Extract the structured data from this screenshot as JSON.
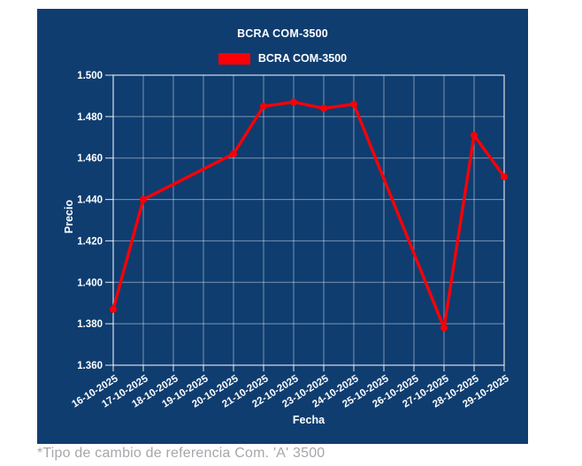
{
  "footnote": "*Tipo de cambio de referencia Com. 'A' 3500",
  "colors": {
    "panel_bg": "#0f3d70",
    "line": "#fb0007",
    "grid": "rgba(255,255,255,0.45)",
    "frame": "rgba(255,255,255,0.75)",
    "text": "#ffffff",
    "footnote_text": "#a4a7ab"
  },
  "chart_data": {
    "type": "line",
    "title": "BCRA COM-3500",
    "xlabel": "Fecha",
    "ylabel": "Precio",
    "grid": true,
    "legend_position": "top-center",
    "legend": [
      {
        "label": "BCRA COM-3500",
        "color": "#fb0007"
      }
    ],
    "categories": [
      "16-10-2025",
      "17-10-2025",
      "18-10-2025",
      "19-10-2025",
      "20-10-2025",
      "21-10-2025",
      "22-10-2025",
      "23-10-2025",
      "24-10-2025",
      "25-10-2025",
      "26-10-2025",
      "27-10-2025",
      "28-10-2025",
      "29-10-2025"
    ],
    "ylim": [
      1.36,
      1.5
    ],
    "yticks": [
      1.36,
      1.38,
      1.4,
      1.42,
      1.44,
      1.46,
      1.48,
      1.5
    ],
    "ytick_labels": [
      "1.360",
      "1.380",
      "1.400",
      "1.420",
      "1.440",
      "1.460",
      "1.480",
      "1.500"
    ],
    "series": [
      {
        "name": "BCRA COM-3500",
        "points": [
          {
            "date": "16-10-2025",
            "value": 1.387
          },
          {
            "date": "17-10-2025",
            "value": 1.44
          },
          {
            "date": "20-10-2025",
            "value": 1.462
          },
          {
            "date": "21-10-2025",
            "value": 1.485
          },
          {
            "date": "22-10-2025",
            "value": 1.487
          },
          {
            "date": "23-10-2025",
            "value": 1.484
          },
          {
            "date": "24-10-2025",
            "value": 1.486
          },
          {
            "date": "27-10-2025",
            "value": 1.378
          },
          {
            "date": "28-10-2025",
            "value": 1.471
          },
          {
            "date": "29-10-2025",
            "value": 1.451
          }
        ]
      }
    ]
  }
}
